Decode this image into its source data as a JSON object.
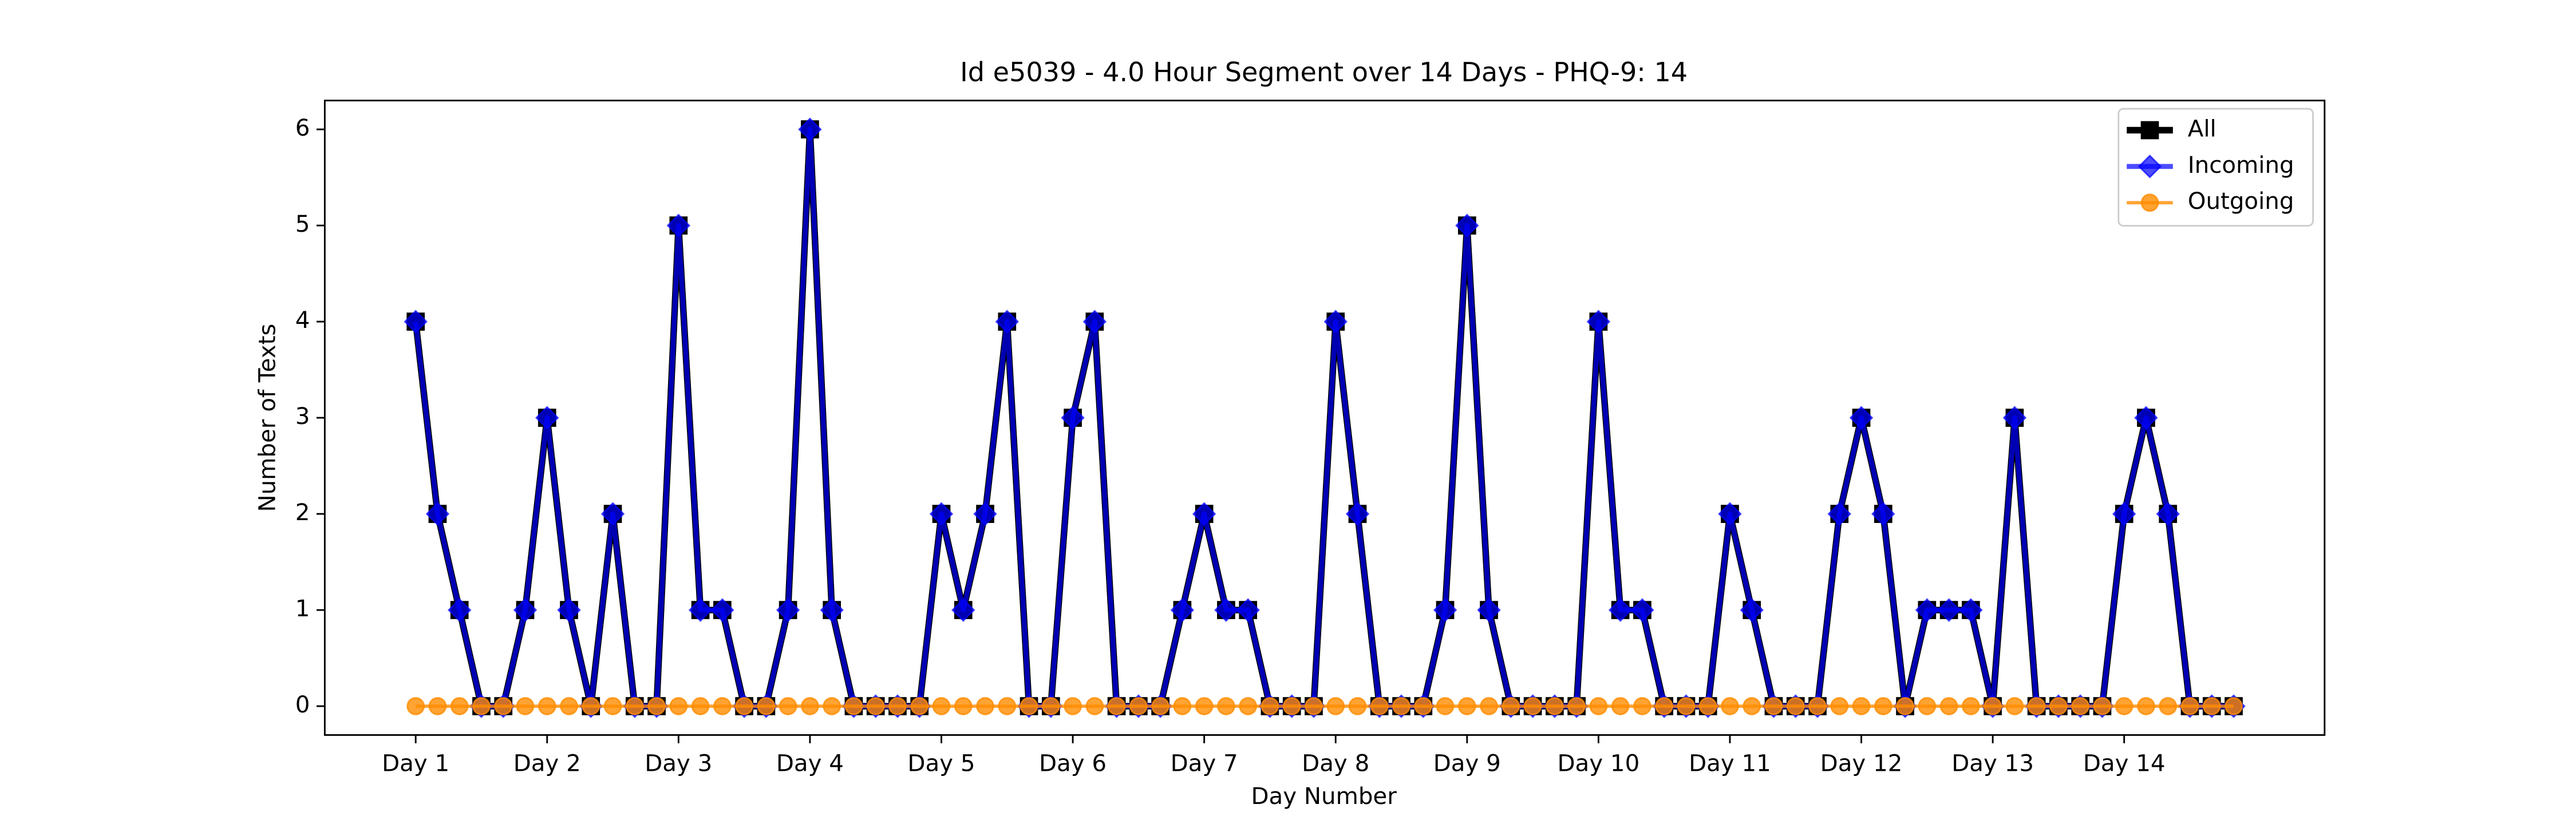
{
  "chart_data": {
    "type": "line",
    "title": "Id e5039 - 4.0 Hour Segment over 14 Days - PHQ-9: 14",
    "x_label": "Day Number",
    "y_label": "Number of Texts",
    "categories": [
      "Day 1",
      null,
      null,
      null,
      null,
      null,
      "Day 2",
      null,
      null,
      null,
      null,
      null,
      "Day 3",
      null,
      null,
      null,
      null,
      null,
      "Day 4",
      null,
      null,
      null,
      null,
      null,
      "Day 5",
      null,
      null,
      null,
      null,
      null,
      "Day 6",
      null,
      null,
      null,
      null,
      null,
      "Day 7",
      null,
      null,
      null,
      null,
      null,
      "Day 8",
      null,
      null,
      null,
      null,
      null,
      "Day 9",
      null,
      null,
      null,
      null,
      null,
      "Day 10",
      null,
      null,
      null,
      null,
      null,
      "Day 11",
      null,
      null,
      null,
      null,
      null,
      "Day 12",
      null,
      null,
      null,
      null,
      null,
      "Day 13",
      null,
      null,
      null,
      null,
      null,
      "Day 14",
      null,
      null,
      null,
      null,
      null
    ],
    "xlim": [
      -4.15,
      87.15
    ],
    "ylim": [
      -0.3,
      6.3
    ],
    "yticks": [
      0,
      1,
      2,
      3,
      4,
      5,
      6
    ],
    "legend": "upper right",
    "series": [
      {
        "name": "All",
        "color": "#000000",
        "marker": "square",
        "line_width": 4,
        "opacity": 1,
        "values": [
          4,
          2,
          1,
          0,
          0,
          1,
          3,
          1,
          0,
          2,
          0,
          0,
          5,
          1,
          1,
          0,
          0,
          1,
          6,
          1,
          0,
          0,
          0,
          0,
          2,
          1,
          2,
          4,
          0,
          0,
          3,
          4,
          0,
          0,
          0,
          1,
          2,
          1,
          1,
          0,
          0,
          0,
          4,
          2,
          0,
          0,
          0,
          1,
          5,
          1,
          0,
          0,
          0,
          0,
          4,
          1,
          1,
          0,
          0,
          0,
          2,
          1,
          0,
          0,
          0,
          2,
          3,
          2,
          0,
          1,
          1,
          1,
          0,
          3,
          0,
          0,
          0,
          0,
          2,
          3,
          2,
          0,
          0,
          0
        ]
      },
      {
        "name": "Incoming",
        "color": "#0000ff",
        "marker": "diamond",
        "line_width": 3,
        "opacity": 0.7,
        "values": [
          4,
          2,
          1,
          0,
          0,
          1,
          3,
          1,
          0,
          2,
          0,
          0,
          5,
          1,
          1,
          0,
          0,
          1,
          6,
          1,
          0,
          0,
          0,
          0,
          2,
          1,
          2,
          4,
          0,
          0,
          3,
          4,
          0,
          0,
          0,
          1,
          2,
          1,
          1,
          0,
          0,
          0,
          4,
          2,
          0,
          0,
          0,
          1,
          5,
          1,
          0,
          0,
          0,
          0,
          4,
          1,
          1,
          0,
          0,
          0,
          2,
          1,
          0,
          0,
          0,
          2,
          3,
          2,
          0,
          1,
          1,
          1,
          0,
          3,
          0,
          0,
          0,
          0,
          2,
          3,
          2,
          0,
          0,
          0
        ]
      },
      {
        "name": "Outgoing",
        "color": "#ff8c00",
        "marker": "circle",
        "line_width": 2,
        "opacity": 0.8,
        "values": [
          0,
          0,
          0,
          0,
          0,
          0,
          0,
          0,
          0,
          0,
          0,
          0,
          0,
          0,
          0,
          0,
          0,
          0,
          0,
          0,
          0,
          0,
          0,
          0,
          0,
          0,
          0,
          0,
          0,
          0,
          0,
          0,
          0,
          0,
          0,
          0,
          0,
          0,
          0,
          0,
          0,
          0,
          0,
          0,
          0,
          0,
          0,
          0,
          0,
          0,
          0,
          0,
          0,
          0,
          0,
          0,
          0,
          0,
          0,
          0,
          0,
          0,
          0,
          0,
          0,
          0,
          0,
          0,
          0,
          0,
          0,
          0,
          0,
          0,
          0,
          0,
          0,
          0,
          0,
          0,
          0,
          0,
          0,
          0
        ]
      }
    ]
  }
}
